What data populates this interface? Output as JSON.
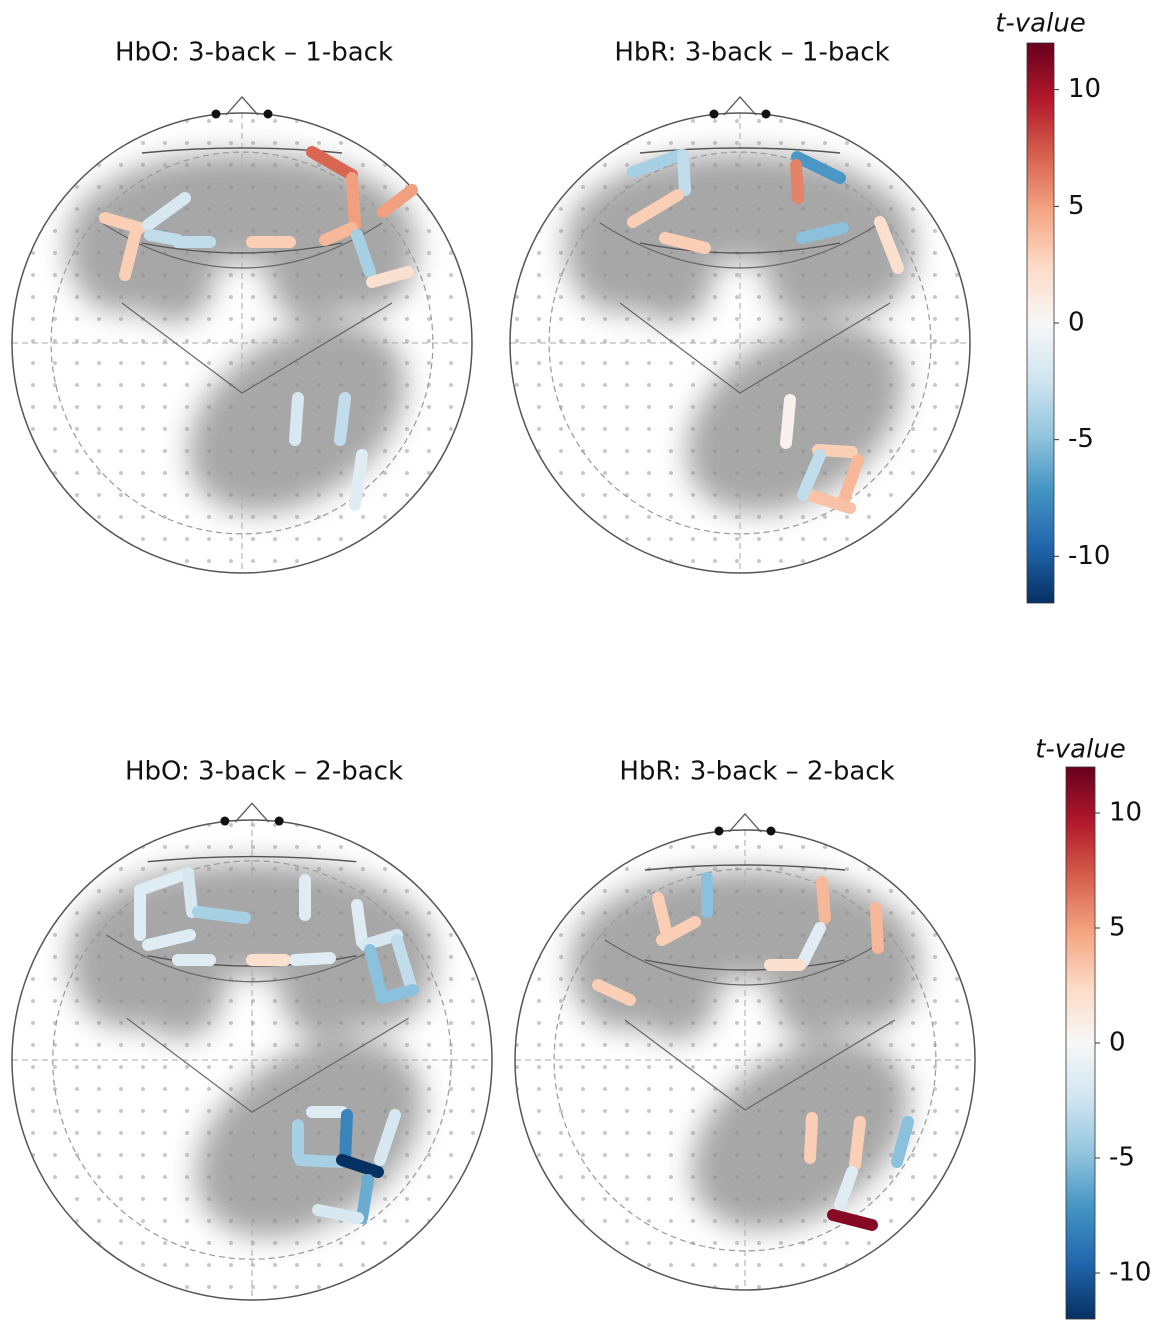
{
  "panels": [
    {
      "title": "HbO: 3-back – 1-back",
      "channels": [
        7,
        5,
        5,
        4,
        -4,
        2,
        3,
        3,
        -2,
        -3,
        -3,
        3,
        -2,
        -3,
        -1.5
      ]
    },
    {
      "title": "HbR: 3-back – 1-back",
      "channels": [
        -4,
        -3,
        3,
        3,
        -7,
        6,
        -5,
        2,
        0.5,
        3,
        4,
        3.5,
        -3
      ]
    },
    {
      "title": "HbO: 3-back – 2-back",
      "channels": [
        -1.5,
        -2,
        -4,
        -1.5,
        -1.5,
        -1.5,
        2,
        -1.5,
        -1.5,
        -1.5,
        -2,
        -5,
        -3,
        -5,
        -1.5,
        -4,
        -4,
        -8,
        -12,
        -2,
        -6,
        -2
      ]
    },
    {
      "title": "HbR: 3-back – 2-back",
      "channels": [
        3,
        3,
        -5,
        3,
        4,
        -1.5,
        2,
        4,
        3,
        3,
        -5,
        -1.5,
        11
      ]
    }
  ],
  "colorbars": [
    {
      "label": "t-value",
      "lim": [
        -12,
        12
      ],
      "ticks": [
        10,
        5,
        0,
        -5,
        -10
      ]
    },
    {
      "label": "t-value",
      "lim": [
        -12,
        12
      ],
      "ticks": [
        10,
        5,
        0,
        -5,
        -10
      ]
    }
  ],
  "colormap": [
    "#053061",
    "#2166ac",
    "#4393c3",
    "#92c5de",
    "#d1e5f0",
    "#f7f7f7",
    "#fddbc7",
    "#f4a582",
    "#d6604d",
    "#b2182b",
    "#67001f"
  ]
}
